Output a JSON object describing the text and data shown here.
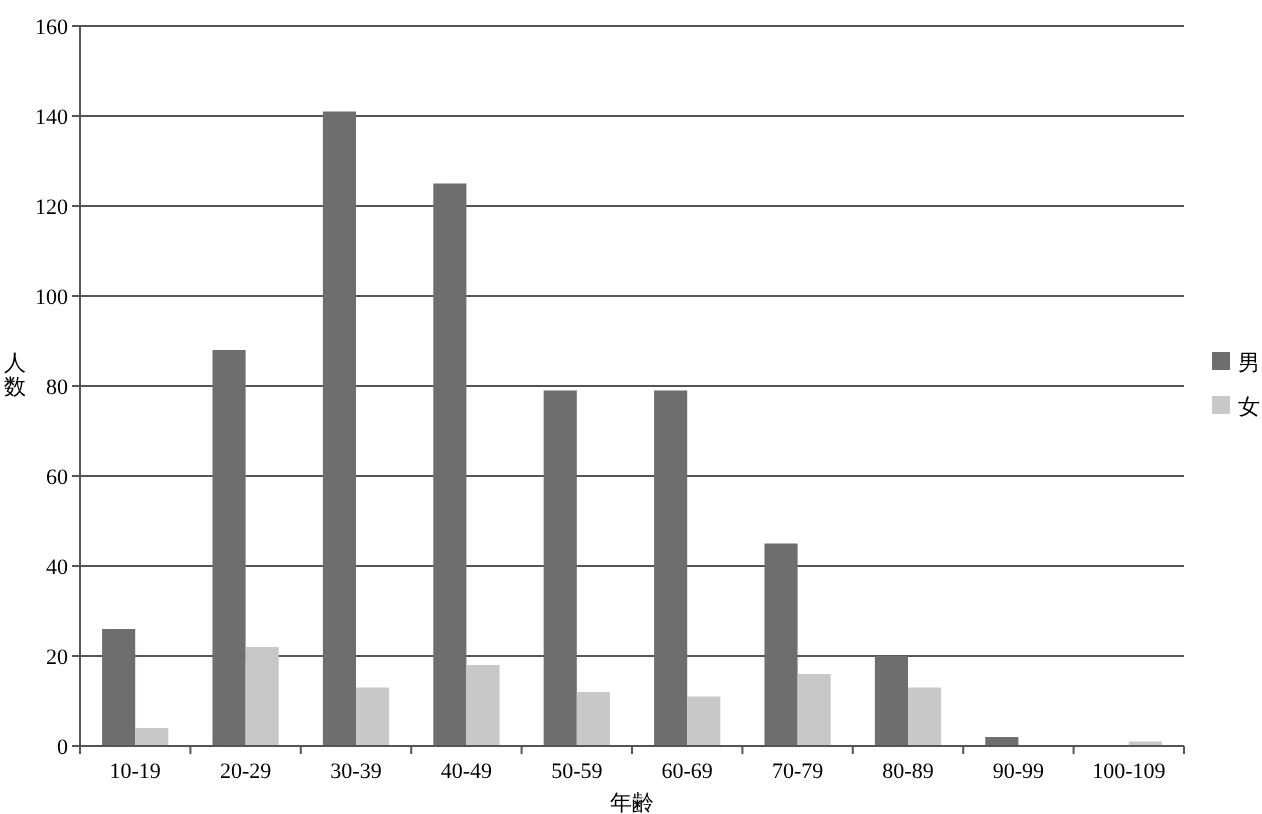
{
  "chart_data": {
    "type": "bar",
    "xlabel": "年齢",
    "ylabel": "人数",
    "categories": [
      "10-19",
      "20-29",
      "30-39",
      "40-49",
      "50-59",
      "60-69",
      "70-79",
      "80-89",
      "90-99",
      "100-109"
    ],
    "series": [
      {
        "name": "男",
        "color": "#6f6d6e",
        "values": [
          26,
          88,
          141,
          125,
          79,
          79,
          45,
          20,
          2,
          0
        ]
      },
      {
        "name": "女",
        "color": "#c8c8c8",
        "values": [
          4,
          22,
          13,
          18,
          12,
          11,
          16,
          13,
          0,
          1
        ]
      }
    ],
    "ylim": [
      0,
      160
    ],
    "yticks": [
      0,
      20,
      40,
      60,
      80,
      100,
      120,
      140,
      160
    ],
    "grid": "y",
    "legend": "right"
  }
}
